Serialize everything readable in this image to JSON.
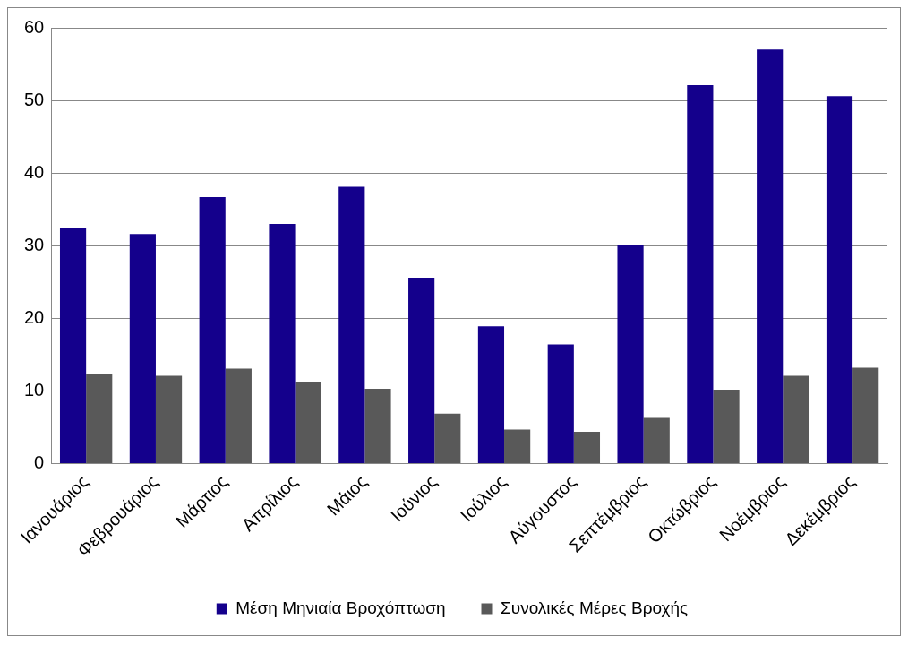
{
  "chart_data": {
    "type": "bar",
    "categories": [
      "Ιανουάριος",
      "Φεβρουάριος",
      "Μάρτιος",
      "Απρίλιος",
      "Μάιος",
      "Ιούνιος",
      "Ιούλιος",
      "Αύγουστος",
      "Σεπτέμβριος",
      "Οκτώβριος",
      "Νοέμβριος",
      "Δεκέμβριος"
    ],
    "series": [
      {
        "name": "Μέση Μηνιαία Βροχόπτωση",
        "color": "#14008c",
        "values": [
          32.4,
          31.6,
          36.7,
          33.0,
          38.1,
          25.6,
          18.9,
          16.4,
          30.1,
          52.1,
          57.0,
          50.6
        ]
      },
      {
        "name": "Συνολικές Μέρες Βροχής",
        "color": "#595959",
        "values": [
          12.3,
          12.1,
          13.1,
          11.3,
          10.3,
          6.9,
          4.7,
          4.4,
          6.3,
          10.2,
          12.1,
          13.2
        ]
      }
    ],
    "ylim": [
      0,
      60
    ],
    "yticks": [
      0,
      10,
      20,
      30,
      40,
      50,
      60
    ],
    "grid": "y",
    "legend": "bottom"
  }
}
